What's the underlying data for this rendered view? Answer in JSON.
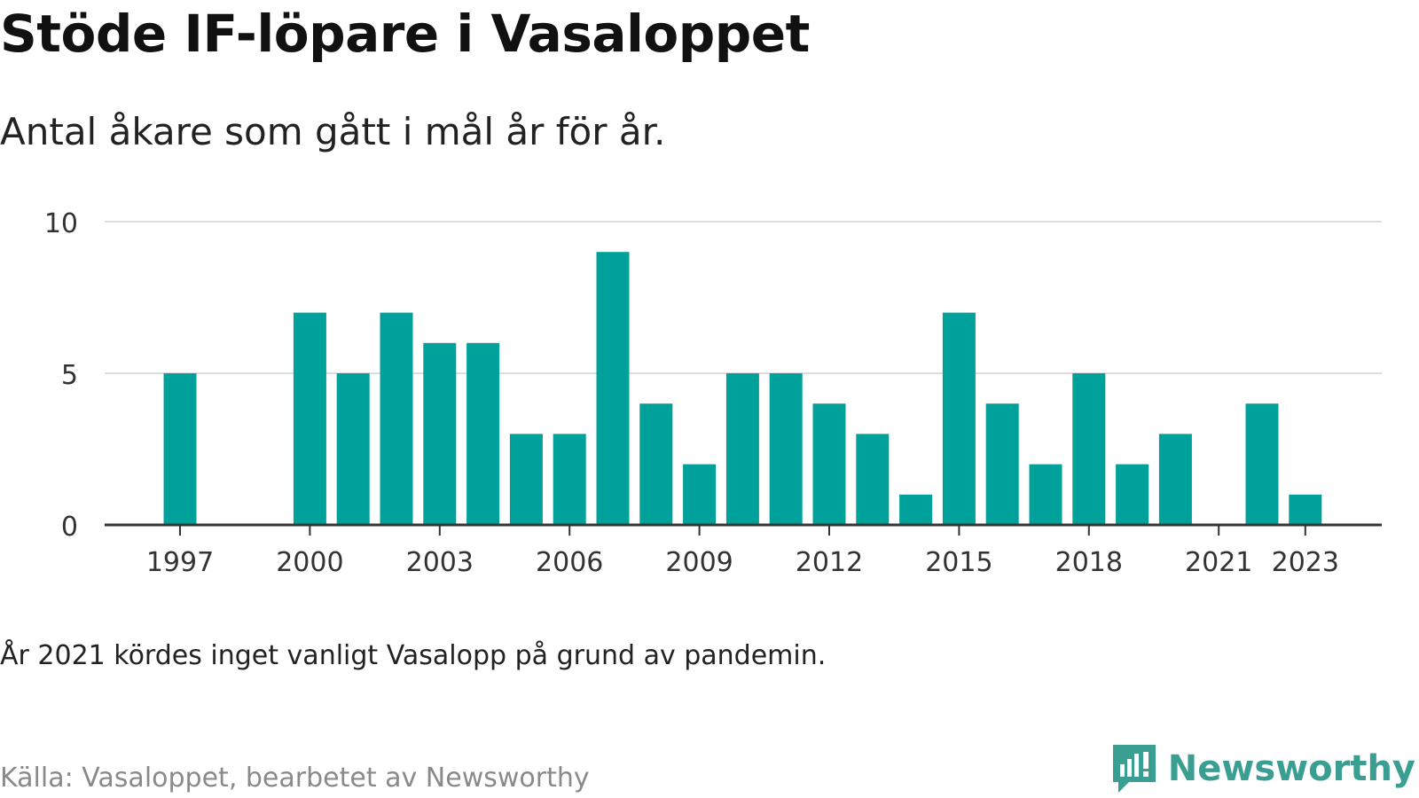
{
  "header": {
    "title": "Stöde IF-löpare i Vasaloppet",
    "subtitle": "Antal åkare som gått i mål år för år."
  },
  "footer": {
    "note": "År 2021 kördes inget vanligt Vasalopp på grund av pandemin.",
    "source": "Källa: Vasaloppet, bearbetet av Newsworthy",
    "brand": "Newsworthy"
  },
  "colors": {
    "bar": "#00a19a",
    "grid": "#dddddd",
    "axis": "#333333",
    "brand": "#3a9e92"
  },
  "brand_icon": "newsworthy-logo-icon",
  "chart_data": {
    "type": "bar",
    "title": "Stöde IF-löpare i Vasaloppet",
    "subtitle": "Antal åkare som gått i mål år för år.",
    "xlabel": "",
    "ylabel": "",
    "categories": [
      1997,
      1998,
      1999,
      2000,
      2001,
      2002,
      2003,
      2004,
      2005,
      2006,
      2007,
      2008,
      2009,
      2010,
      2011,
      2012,
      2013,
      2014,
      2015,
      2016,
      2017,
      2018,
      2019,
      2020,
      2021,
      2022,
      2023
    ],
    "values": [
      5,
      0,
      0,
      7,
      5,
      7,
      6,
      6,
      3,
      3,
      9,
      4,
      2,
      5,
      5,
      4,
      3,
      1,
      7,
      4,
      2,
      5,
      2,
      3,
      0,
      4,
      1
    ],
    "ylim": [
      0,
      10
    ],
    "yticks": [
      0,
      5,
      10
    ],
    "xtick_labels": [
      "1997",
      "2000",
      "2003",
      "2006",
      "2009",
      "2012",
      "2015",
      "2018",
      "2021",
      "2023"
    ],
    "grid": true,
    "legend": "none"
  }
}
